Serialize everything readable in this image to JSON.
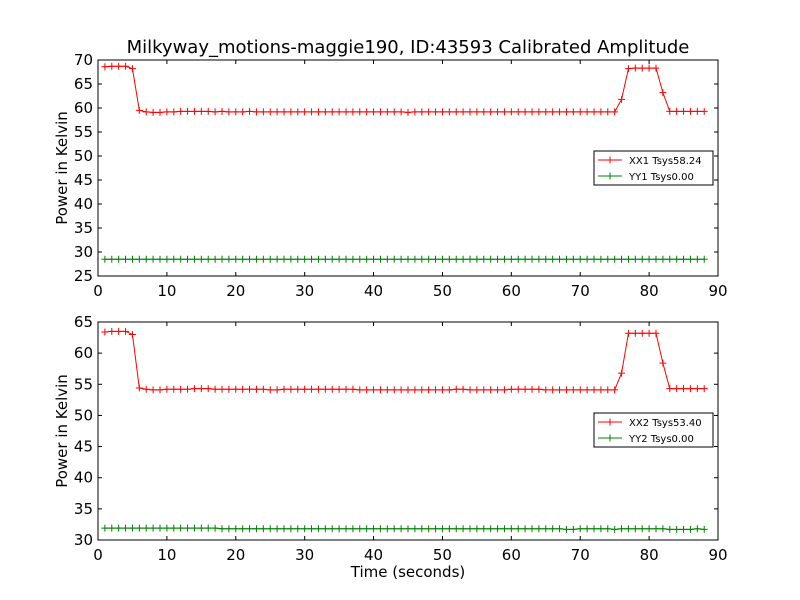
{
  "chart_data": [
    {
      "type": "line",
      "title": "Milkyway_motions-maggie190, ID:43593 Calibrated Amplitude",
      "xlabel": "",
      "ylabel": "Power in Kelvin",
      "xlim": [
        0,
        90
      ],
      "ylim": [
        25,
        70
      ],
      "xticks": [
        0,
        10,
        20,
        30,
        40,
        50,
        60,
        70,
        80,
        90
      ],
      "yticks": [
        25,
        30,
        35,
        40,
        45,
        50,
        55,
        60,
        65,
        70
      ],
      "legend_position": "center-right",
      "grid": false,
      "series": [
        {
          "name": "XX1 Tsys58.24",
          "color": "#ff0000",
          "x": [
            1,
            2,
            3,
            4,
            5,
            6,
            7,
            8,
            9,
            10,
            11,
            12,
            13,
            14,
            15,
            16,
            17,
            18,
            19,
            20,
            21,
            22,
            23,
            24,
            25,
            26,
            27,
            28,
            29,
            30,
            31,
            32,
            33,
            34,
            35,
            36,
            37,
            38,
            39,
            40,
            41,
            42,
            43,
            44,
            45,
            46,
            47,
            48,
            49,
            50,
            51,
            52,
            53,
            54,
            55,
            56,
            57,
            58,
            59,
            60,
            61,
            62,
            63,
            64,
            65,
            66,
            67,
            68,
            69,
            70,
            71,
            72,
            73,
            74,
            75,
            76,
            77,
            78,
            79,
            80,
            81,
            82,
            83,
            84,
            85,
            86,
            87,
            88
          ],
          "y": [
            68.6,
            68.7,
            68.7,
            68.7,
            68.2,
            59.5,
            59.2,
            59.1,
            59.1,
            59.2,
            59.2,
            59.3,
            59.3,
            59.3,
            59.3,
            59.3,
            59.2,
            59.3,
            59.2,
            59.2,
            59.2,
            59.3,
            59.2,
            59.2,
            59.2,
            59.2,
            59.2,
            59.2,
            59.2,
            59.2,
            59.2,
            59.2,
            59.2,
            59.2,
            59.2,
            59.2,
            59.2,
            59.2,
            59.2,
            59.2,
            59.2,
            59.2,
            59.2,
            59.2,
            59.1,
            59.2,
            59.2,
            59.2,
            59.2,
            59.2,
            59.2,
            59.2,
            59.2,
            59.2,
            59.2,
            59.2,
            59.2,
            59.2,
            59.2,
            59.2,
            59.2,
            59.2,
            59.2,
            59.2,
            59.2,
            59.2,
            59.2,
            59.2,
            59.2,
            59.2,
            59.2,
            59.2,
            59.2,
            59.2,
            59.2,
            61.8,
            68.2,
            68.3,
            68.3,
            68.3,
            68.3,
            63.2,
            59.3,
            59.3,
            59.3,
            59.3,
            59.3,
            59.3
          ]
        },
        {
          "name": "YY1 Tsys0.00",
          "color": "#008000",
          "x": [
            1,
            2,
            3,
            4,
            5,
            6,
            7,
            8,
            9,
            10,
            11,
            12,
            13,
            14,
            15,
            16,
            17,
            18,
            19,
            20,
            21,
            22,
            23,
            24,
            25,
            26,
            27,
            28,
            29,
            30,
            31,
            32,
            33,
            34,
            35,
            36,
            37,
            38,
            39,
            40,
            41,
            42,
            43,
            44,
            45,
            46,
            47,
            48,
            49,
            50,
            51,
            52,
            53,
            54,
            55,
            56,
            57,
            58,
            59,
            60,
            61,
            62,
            63,
            64,
            65,
            66,
            67,
            68,
            69,
            70,
            71,
            72,
            73,
            74,
            75,
            76,
            77,
            78,
            79,
            80,
            81,
            82,
            83,
            84,
            85,
            86,
            87,
            88
          ],
          "y": [
            28.5,
            28.5,
            28.5,
            28.5,
            28.5,
            28.5,
            28.5,
            28.5,
            28.5,
            28.5,
            28.5,
            28.5,
            28.5,
            28.5,
            28.5,
            28.5,
            28.5,
            28.5,
            28.5,
            28.5,
            28.5,
            28.5,
            28.5,
            28.5,
            28.5,
            28.5,
            28.5,
            28.5,
            28.5,
            28.5,
            28.5,
            28.5,
            28.5,
            28.5,
            28.5,
            28.5,
            28.5,
            28.5,
            28.5,
            28.5,
            28.5,
            28.5,
            28.5,
            28.5,
            28.5,
            28.5,
            28.5,
            28.5,
            28.5,
            28.5,
            28.5,
            28.5,
            28.5,
            28.5,
            28.5,
            28.5,
            28.5,
            28.5,
            28.5,
            28.5,
            28.5,
            28.5,
            28.5,
            28.5,
            28.5,
            28.5,
            28.5,
            28.5,
            28.5,
            28.5,
            28.5,
            28.5,
            28.5,
            28.5,
            28.5,
            28.5,
            28.5,
            28.5,
            28.5,
            28.5,
            28.5,
            28.5,
            28.5,
            28.5,
            28.5,
            28.5,
            28.5,
            28.5
          ]
        }
      ]
    },
    {
      "type": "line",
      "title": "",
      "xlabel": "Time (seconds)",
      "ylabel": "Power in Kelvin",
      "xlim": [
        0,
        90
      ],
      "ylim": [
        30,
        65
      ],
      "xticks": [
        0,
        10,
        20,
        30,
        40,
        50,
        60,
        70,
        80,
        90
      ],
      "yticks": [
        30,
        35,
        40,
        45,
        50,
        55,
        60,
        65
      ],
      "legend_position": "center-right",
      "grid": false,
      "series": [
        {
          "name": "XX2 Tsys53.40",
          "color": "#ff0000",
          "x": [
            1,
            2,
            3,
            4,
            5,
            6,
            7,
            8,
            9,
            10,
            11,
            12,
            13,
            14,
            15,
            16,
            17,
            18,
            19,
            20,
            21,
            22,
            23,
            24,
            25,
            26,
            27,
            28,
            29,
            30,
            31,
            32,
            33,
            34,
            35,
            36,
            37,
            38,
            39,
            40,
            41,
            42,
            43,
            44,
            45,
            46,
            47,
            48,
            49,
            50,
            51,
            52,
            53,
            54,
            55,
            56,
            57,
            58,
            59,
            60,
            61,
            62,
            63,
            64,
            65,
            66,
            67,
            68,
            69,
            70,
            71,
            72,
            73,
            74,
            75,
            76,
            77,
            78,
            79,
            80,
            81,
            82,
            83,
            84,
            85,
            86,
            87,
            88
          ],
          "y": [
            63.4,
            63.5,
            63.5,
            63.5,
            63.0,
            54.4,
            54.2,
            54.1,
            54.1,
            54.2,
            54.2,
            54.2,
            54.2,
            54.3,
            54.3,
            54.3,
            54.2,
            54.2,
            54.2,
            54.2,
            54.2,
            54.2,
            54.2,
            54.2,
            54.1,
            54.1,
            54.2,
            54.2,
            54.2,
            54.2,
            54.2,
            54.2,
            54.2,
            54.2,
            54.2,
            54.2,
            54.2,
            54.1,
            54.1,
            54.1,
            54.1,
            54.1,
            54.1,
            54.1,
            54.1,
            54.1,
            54.1,
            54.1,
            54.1,
            54.1,
            54.1,
            54.2,
            54.2,
            54.1,
            54.1,
            54.1,
            54.1,
            54.1,
            54.1,
            54.2,
            54.2,
            54.2,
            54.2,
            54.2,
            54.1,
            54.1,
            54.1,
            54.1,
            54.1,
            54.1,
            54.1,
            54.1,
            54.1,
            54.1,
            54.1,
            56.8,
            63.2,
            63.2,
            63.2,
            63.2,
            63.2,
            58.4,
            54.3,
            54.3,
            54.3,
            54.3,
            54.3,
            54.3
          ]
        },
        {
          "name": "YY2 Tsys0.00",
          "color": "#008000",
          "x": [
            1,
            2,
            3,
            4,
            5,
            6,
            7,
            8,
            9,
            10,
            11,
            12,
            13,
            14,
            15,
            16,
            17,
            18,
            19,
            20,
            21,
            22,
            23,
            24,
            25,
            26,
            27,
            28,
            29,
            30,
            31,
            32,
            33,
            34,
            35,
            36,
            37,
            38,
            39,
            40,
            41,
            42,
            43,
            44,
            45,
            46,
            47,
            48,
            49,
            50,
            51,
            52,
            53,
            54,
            55,
            56,
            57,
            58,
            59,
            60,
            61,
            62,
            63,
            64,
            65,
            66,
            67,
            68,
            69,
            70,
            71,
            72,
            73,
            74,
            75,
            76,
            77,
            78,
            79,
            80,
            81,
            82,
            83,
            84,
            85,
            86,
            87,
            88
          ],
          "y": [
            31.9,
            31.9,
            31.9,
            31.9,
            31.9,
            31.9,
            31.9,
            31.9,
            31.9,
            31.9,
            31.9,
            31.9,
            31.9,
            31.9,
            31.9,
            31.9,
            31.9,
            31.8,
            31.8,
            31.8,
            31.8,
            31.8,
            31.8,
            31.8,
            31.8,
            31.8,
            31.8,
            31.8,
            31.8,
            31.8,
            31.8,
            31.8,
            31.8,
            31.8,
            31.8,
            31.8,
            31.8,
            31.8,
            31.8,
            31.8,
            31.8,
            31.8,
            31.8,
            31.8,
            31.8,
            31.8,
            31.8,
            31.8,
            31.8,
            31.8,
            31.8,
            31.8,
            31.8,
            31.8,
            31.8,
            31.8,
            31.8,
            31.8,
            31.8,
            31.8,
            31.8,
            31.8,
            31.8,
            31.8,
            31.8,
            31.8,
            31.8,
            31.7,
            31.7,
            31.8,
            31.8,
            31.8,
            31.8,
            31.8,
            31.7,
            31.8,
            31.8,
            31.8,
            31.8,
            31.8,
            31.8,
            31.8,
            31.7,
            31.7,
            31.7,
            31.7,
            31.8,
            31.7
          ]
        }
      ]
    }
  ]
}
